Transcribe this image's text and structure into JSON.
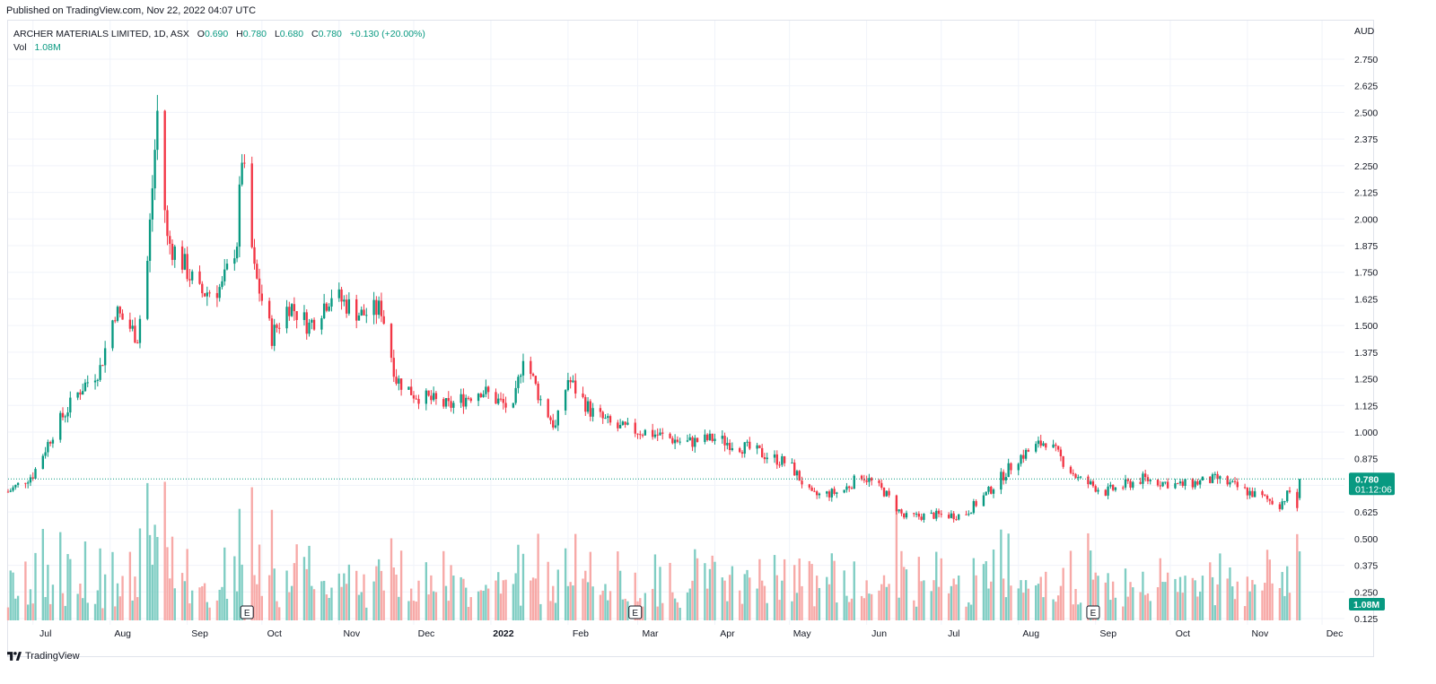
{
  "published_text": "Published on TradingView.com, Nov 22, 2022 04:07 UTC",
  "footer_brand": "TradingView",
  "legend": {
    "symbol": "ARCHER MATERIALS LIMITED, 1D, ASX",
    "open_label": "O",
    "open": "0.690",
    "high_label": "H",
    "high": "0.780",
    "low_label": "L",
    "low": "0.680",
    "close_label": "C",
    "close": "0.780",
    "change": "+0.130 (+20.00%)",
    "vol_label": "Vol",
    "vol": "1.08M"
  },
  "colors": {
    "up": "#089981",
    "down": "#f23645",
    "vol_up": "#7fcdc3",
    "vol_down": "#f7a9a7",
    "grid": "#f0f3fa",
    "text": "#131722"
  },
  "chart_data": {
    "type": "candlestick",
    "currency": "AUD",
    "ylim": [
      0.125,
      2.8
    ],
    "y_ticks": [
      "2.750",
      "2.625",
      "2.500",
      "2.375",
      "2.250",
      "2.125",
      "2.000",
      "1.875",
      "1.750",
      "1.625",
      "1.500",
      "1.375",
      "1.250",
      "1.125",
      "1.000",
      "0.875",
      "0.750",
      "0.625",
      "0.500",
      "0.375",
      "0.250",
      "0.125"
    ],
    "x_ticks": [
      "Jul",
      "Aug",
      "Sep",
      "Oct",
      "Nov",
      "Dec",
      "2022",
      "Feb",
      "Mar",
      "Apr",
      "May",
      "Jun",
      "Jul",
      "Aug",
      "Sep",
      "Oct",
      "Nov",
      "Dec"
    ],
    "x_range": [
      "2021-06-21",
      "2022-12-10"
    ],
    "month_starts": [
      "2021-07-01",
      "2021-08-01",
      "2021-09-01",
      "2021-10-01",
      "2021-11-01",
      "2021-12-01",
      "2022-01-01",
      "2022-02-01",
      "2022-03-01",
      "2022-04-01",
      "2022-05-01",
      "2022-06-01",
      "2022-07-01",
      "2022-08-01",
      "2022-09-01",
      "2022-10-01",
      "2022-11-01",
      "2022-12-01"
    ],
    "start_date": "2021-06-21",
    "end_date": "2022-11-22",
    "approx_close_path": [
      [
        "2021-06-21",
        0.72
      ],
      [
        "2021-07-01",
        0.8
      ],
      [
        "2021-07-10",
        1.02
      ],
      [
        "2021-07-20",
        1.2
      ],
      [
        "2021-07-28",
        1.3
      ],
      [
        "2021-08-03",
        1.57
      ],
      [
        "2021-08-12",
        1.45
      ],
      [
        "2021-08-16",
        1.8
      ],
      [
        "2021-08-20",
        2.5
      ],
      [
        "2021-08-24",
        1.9
      ],
      [
        "2021-08-30",
        1.8
      ],
      [
        "2021-09-06",
        1.65
      ],
      [
        "2021-09-15",
        1.68
      ],
      [
        "2021-09-21",
        1.9
      ],
      [
        "2021-09-23",
        2.3
      ],
      [
        "2021-09-28",
        1.75
      ],
      [
        "2021-10-05",
        1.45
      ],
      [
        "2021-10-12",
        1.6
      ],
      [
        "2021-10-20",
        1.5
      ],
      [
        "2021-10-29",
        1.65
      ],
      [
        "2021-11-10",
        1.55
      ],
      [
        "2021-11-18",
        1.58
      ],
      [
        "2021-11-24",
        1.25
      ],
      [
        "2021-12-01",
        1.18
      ],
      [
        "2021-12-15",
        1.12
      ],
      [
        "2021-12-28",
        1.2
      ],
      [
        "2022-01-10",
        1.1
      ],
      [
        "2022-01-14",
        1.37
      ],
      [
        "2022-01-21",
        1.15
      ],
      [
        "2022-01-27",
        1.02
      ],
      [
        "2022-02-01",
        1.25
      ],
      [
        "2022-02-10",
        1.1
      ],
      [
        "2022-02-20",
        1.02
      ],
      [
        "2022-03-05",
        1.0
      ],
      [
        "2022-03-20",
        0.95
      ],
      [
        "2022-04-01",
        0.97
      ],
      [
        "2022-04-15",
        0.92
      ],
      [
        "2022-05-01",
        0.85
      ],
      [
        "2022-05-10",
        0.7
      ],
      [
        "2022-05-22",
        0.72
      ],
      [
        "2022-05-30",
        0.8
      ],
      [
        "2022-06-08",
        0.72
      ],
      [
        "2022-06-16",
        0.6
      ],
      [
        "2022-06-28",
        0.61
      ],
      [
        "2022-07-10",
        0.61
      ],
      [
        "2022-07-20",
        0.72
      ],
      [
        "2022-08-01",
        0.88
      ],
      [
        "2022-08-12",
        0.96
      ],
      [
        "2022-08-25",
        0.78
      ],
      [
        "2022-09-05",
        0.72
      ],
      [
        "2022-09-20",
        0.78
      ],
      [
        "2022-10-05",
        0.75
      ],
      [
        "2022-10-20",
        0.78
      ],
      [
        "2022-11-01",
        0.72
      ],
      [
        "2022-11-14",
        0.66
      ],
      [
        "2022-11-18",
        0.72
      ],
      [
        "2022-11-21",
        0.65
      ],
      [
        "2022-11-22",
        0.78
      ]
    ],
    "last_close": 0.78,
    "last_open": 0.69,
    "last_high": 0.78,
    "last_low": 0.68,
    "price_label": "0.780",
    "countdown_label": "01:12:06",
    "volume_label": "1.08M",
    "earnings_marker_label": "E",
    "earnings_dates": [
      "2021-09-25",
      "2022-02-28",
      "2022-08-31"
    ]
  }
}
